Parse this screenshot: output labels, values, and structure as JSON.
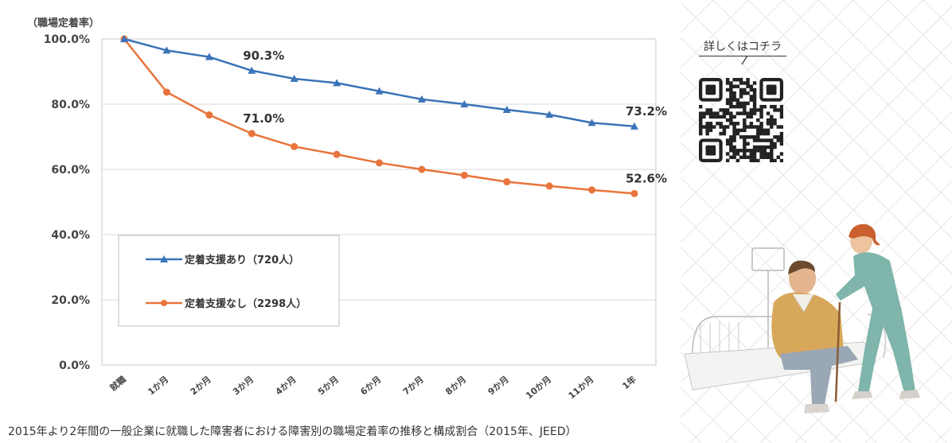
{
  "chart_data": {
    "type": "line",
    "ylabel": "（職場定着率）",
    "ylim": [
      0,
      100
    ],
    "yticks": [
      "100.0%",
      "80.0%",
      "60.0%",
      "40.0%",
      "20.0%",
      "0.0%"
    ],
    "ytick_values": [
      100,
      80,
      60,
      40,
      20,
      0
    ],
    "categories": [
      "就職",
      "1か月",
      "2か月",
      "3か月",
      "4か月",
      "5か月",
      "6か月",
      "7か月",
      "8か月",
      "9か月",
      "10か月",
      "11か月",
      "1年"
    ],
    "series": [
      {
        "name": "定着支援あり（720人）",
        "color": "#3b74b8",
        "marker": "triangle",
        "values": [
          100.0,
          96.5,
          94.5,
          90.3,
          87.8,
          86.5,
          84.0,
          81.5,
          80.0,
          78.3,
          76.8,
          74.3,
          73.2
        ]
      },
      {
        "name": "定着支援なし（2298人）",
        "color": "#e8743b",
        "marker": "circle",
        "values": [
          100.0,
          83.7,
          76.7,
          71.0,
          67.0,
          64.6,
          62.0,
          60.0,
          58.2,
          56.2,
          54.9,
          53.7,
          52.6
        ]
      }
    ],
    "annotations": [
      {
        "text": "90.3%",
        "series": 0,
        "index": 3
      },
      {
        "text": "73.2%",
        "series": 0,
        "index": 12
      },
      {
        "text": "71.0%",
        "series": 1,
        "index": 3
      },
      {
        "text": "52.6%",
        "series": 1,
        "index": 12
      }
    ],
    "grid": true,
    "legend_position": "bottom-left"
  },
  "caption": "2015年より2年間の一般企業に就職した障害者における障害別の職場定着率の推移と構成割合（2015年、JEED）",
  "qr": {
    "label": "詳しくはコチラ",
    "icon": "qr-code-icon"
  },
  "illustration": {
    "icon": "caregiver-helping-elderly-man-illustration"
  },
  "colors": {
    "grid": "#d9d9d9",
    "axis_text": "#444444",
    "pattern": "#e6e6e6"
  }
}
